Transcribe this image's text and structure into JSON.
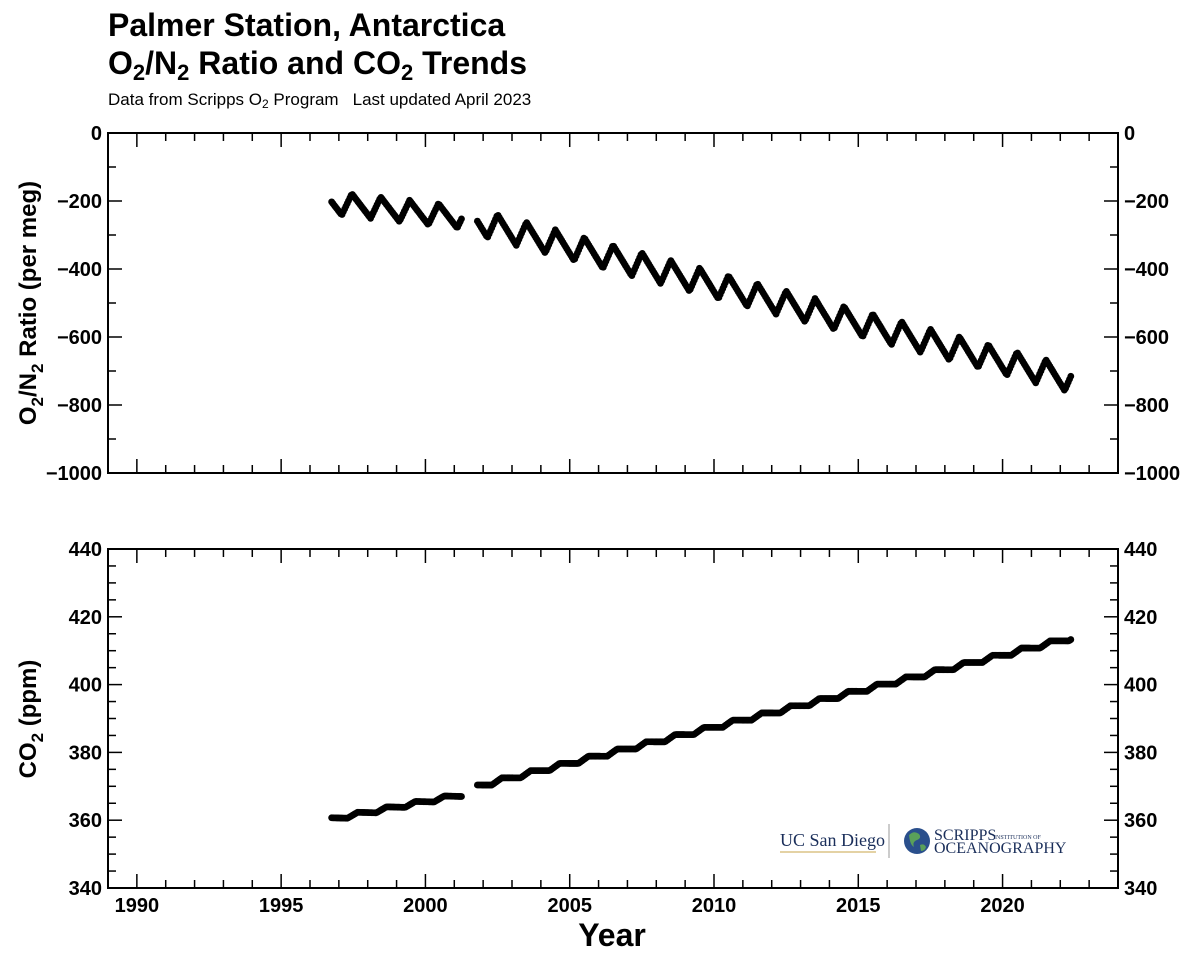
{
  "header": {
    "title_line1": "Palmer Station, Antarctica",
    "title_line2_pre": "O",
    "title_line2_sub1": "2",
    "title_line2_mid": "/N",
    "title_line2_sub2": "2",
    "title_line2_mid2": " Ratio and CO",
    "title_line2_sub3": "2",
    "title_line2_post": " Trends",
    "subtitle_pre": "Data from Scripps O",
    "subtitle_sub": "2",
    "subtitle_post": " Program",
    "subtitle_updated": "Last updated April 2023"
  },
  "logos": {
    "ucsd": "UC San Diego",
    "scripps_main": "SCRIPPS",
    "scripps_small": "INSTITUTION OF",
    "scripps_ocean": "OCEANOGRAPHY"
  },
  "chart_data": [
    {
      "type": "scatter",
      "ylabel_pre": "O",
      "ylabel_sub1": "2",
      "ylabel_mid": "/N",
      "ylabel_sub2": "2",
      "ylabel_post": " Ratio (per meg)",
      "ylim": [
        -1000,
        0
      ],
      "xlim": [
        1989,
        2024
      ],
      "yticks": [
        0,
        -200,
        -400,
        -600,
        -800,
        -1000
      ],
      "ytick_labels": [
        "0",
        "−200",
        "−400",
        "−600",
        "−800",
        "−1000"
      ],
      "segments": [
        {
          "start": 1996.75,
          "end": 2001.25,
          "base_start": -205,
          "base_end": -248,
          "amplitude": 33,
          "phase": 1997.1
        },
        {
          "start": 2001.8,
          "end": 2022.4,
          "base_start": -262,
          "base_end": -725,
          "amplitude": 38,
          "phase": 2002.15
        }
      ],
      "step": 0.045
    },
    {
      "type": "scatter",
      "ylabel_pre": "CO",
      "ylabel_sub": "2",
      "ylabel_post": " (ppm)",
      "ylim": [
        340,
        440
      ],
      "xlim": [
        1989,
        2024
      ],
      "yticks": [
        340,
        360,
        380,
        400,
        420,
        440
      ],
      "ytick_labels": [
        "340",
        "360",
        "380",
        "400",
        "420",
        "440"
      ],
      "segments": [
        {
          "start": 1996.75,
          "end": 2001.25,
          "base_start": 360.3,
          "base_end": 367.5,
          "amplitude": 0.6,
          "phase": 1997.3
        },
        {
          "start": 2001.8,
          "end": 2022.4,
          "base_start": 370.0,
          "base_end": 413.8,
          "amplitude": 0.7,
          "phase": 2002.3
        }
      ],
      "step": 0.045
    }
  ],
  "xaxis": {
    "title": "Year",
    "ticks": [
      1990,
      1995,
      2000,
      2005,
      2010,
      2015,
      2020
    ],
    "tick_labels": [
      "1990",
      "1995",
      "2000",
      "2005",
      "2010",
      "2015",
      "2020"
    ]
  }
}
